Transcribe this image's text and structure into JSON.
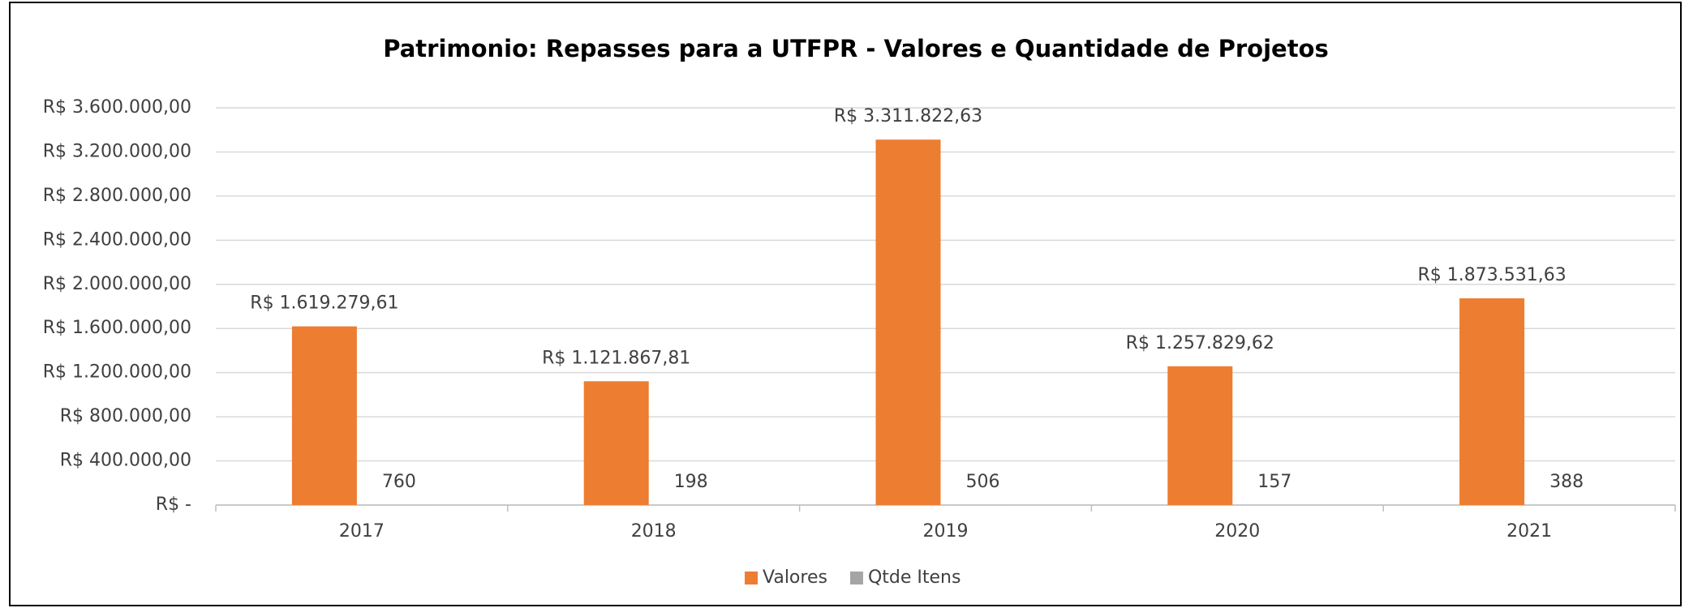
{
  "chart_data": {
    "type": "bar",
    "title": "Patrimonio: Repasses para a UTFPR - Valores e Quantidade de Projetos",
    "categories": [
      "2017",
      "2018",
      "2019",
      "2020",
      "2021"
    ],
    "series": [
      {
        "name": "Valores",
        "color": "#ed7d31",
        "values": [
          1619279.61,
          1121867.81,
          3311822.63,
          1257829.62,
          1873531.63
        ],
        "value_labels": [
          "R$ 1.619.279,61",
          "R$ 1.121.867,81",
          "R$ 3.311.822,63",
          "R$ 1.257.829,62",
          "R$ 1.873.531,63"
        ]
      },
      {
        "name": "Qtde Itens",
        "color": "#a5a5a5",
        "values": [
          760,
          198,
          506,
          157,
          388
        ]
      }
    ],
    "ylim": [
      0,
      3600000
    ],
    "yticks": [
      {
        "value": 0,
        "label": "R$ -"
      },
      {
        "value": 400000,
        "label": "R$ 400.000,00"
      },
      {
        "value": 800000,
        "label": "R$ 800.000,00"
      },
      {
        "value": 1200000,
        "label": "R$ 1.200.000,00"
      },
      {
        "value": 1600000,
        "label": "R$ 1.600.000,00"
      },
      {
        "value": 2000000,
        "label": "R$ 2.000.000,00"
      },
      {
        "value": 2400000,
        "label": "R$ 2.400.000,00"
      },
      {
        "value": 2800000,
        "label": "R$ 2.800.000,00"
      },
      {
        "value": 3200000,
        "label": "R$ 3.200.000,00"
      },
      {
        "value": 3600000,
        "label": "R$ 3.600.000,00"
      }
    ],
    "grid": true,
    "legend": "bottom"
  }
}
